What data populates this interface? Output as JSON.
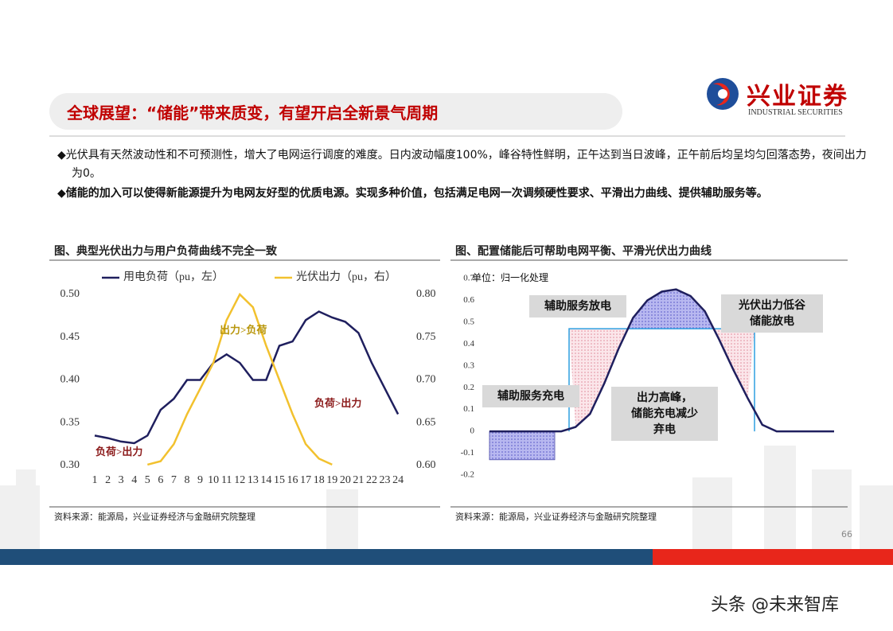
{
  "header": {
    "title": "全球展望：“储能”带来质变，有望开启全新景气周期",
    "logo_name": "兴业证券",
    "logo_sub": "INDUSTRIAL SECURITIES"
  },
  "bullets": [
    "◆光伏具有天然波动性和不可预测性，增大了电网运行调度的难度。日内波动幅度100%，峰谷特性鲜明，正午达到当日波峰，正午前后均呈均匀回落态势，夜间出力为0。",
    "◆储能的加入可以使得新能源提升为电网友好型的优质电源。实现多种价值，包括满足电网一次调频硬性要求、平滑出力曲线、提供辅助服务等。"
  ],
  "chart_data": [
    {
      "type": "line",
      "title": "图、典型光伏出力与用户负荷曲线不完全一致",
      "categories": [
        1,
        2,
        3,
        4,
        5,
        6,
        7,
        8,
        9,
        10,
        11,
        12,
        13,
        14,
        15,
        16,
        17,
        18,
        19,
        20,
        21,
        22,
        23,
        24
      ],
      "series": [
        {
          "name": "用电负荷（pu，左）",
          "color": "#1f1f5e",
          "axis": "y",
          "values": [
            0.335,
            0.332,
            0.328,
            0.326,
            0.335,
            0.365,
            0.378,
            0.4,
            0.4,
            0.42,
            0.43,
            0.42,
            0.4,
            0.4,
            0.44,
            0.445,
            0.47,
            0.48,
            0.473,
            0.468,
            0.455,
            0.42,
            0.39,
            0.36
          ]
        },
        {
          "name": "光伏出力（pu，右）",
          "color": "#f2c12e",
          "axis": "y2",
          "values": [
            null,
            null,
            null,
            null,
            0.601,
            0.605,
            0.625,
            0.66,
            0.69,
            0.72,
            0.77,
            0.8,
            0.785,
            0.74,
            0.7,
            0.66,
            0.625,
            0.608,
            0.601,
            null,
            null,
            null,
            null,
            null
          ]
        }
      ],
      "ylim": [
        0.3,
        0.5
      ],
      "yticks": [
        {
          "value": 0.3,
          "label": "0.30"
        },
        {
          "value": 0.35,
          "label": "0.35"
        },
        {
          "value": 0.4,
          "label": "0.40"
        },
        {
          "value": 0.45,
          "label": "0.45"
        },
        {
          "value": 0.5,
          "label": "0.50"
        }
      ],
      "y2lim": [
        0.6,
        0.8
      ],
      "y2ticks": [
        {
          "value": 0.6,
          "label": "0.60"
        },
        {
          "value": 0.65,
          "label": "0.65"
        },
        {
          "value": 0.7,
          "label": "0.70"
        },
        {
          "value": 0.75,
          "label": "0.75"
        },
        {
          "value": 0.8,
          "label": "0.80"
        }
      ],
      "annotations": [
        "出力>负荷",
        "负荷>出力",
        "负荷>出力"
      ],
      "source": "资料来源：能源局，兴业证券经济与金融研究院整理"
    },
    {
      "type": "line",
      "title": "图、配置储能后可帮助电网平衡、平滑光伏出力曲线",
      "subtitle": "单位：归一化处理",
      "categories": [
        null,
        null,
        null,
        null,
        null,
        null,
        null,
        null,
        null,
        null,
        null,
        null,
        null,
        null,
        null,
        null,
        null,
        null,
        null,
        null,
        null,
        null,
        null,
        null,
        null
      ],
      "series": [
        {
          "name": "光伏出力",
          "color": "#1f1f5e",
          "values": [
            0,
            0,
            0,
            0,
            0,
            0,
            0.02,
            0.08,
            0.22,
            0.38,
            0.52,
            0.6,
            0.64,
            0.65,
            0.62,
            0.55,
            0.42,
            0.28,
            0.15,
            0.03,
            0,
            0,
            0,
            0,
            0
          ]
        }
      ],
      "smoothed_level": 0.47,
      "charge_level": -0.13,
      "ylim": [
        -0.2,
        0.7
      ],
      "yticks": [
        -0.2,
        -0.1,
        0,
        0.1,
        0.2,
        0.3,
        0.4,
        0.5,
        0.6,
        0.7
      ],
      "annotations": [
        "辅助服务放电",
        "光伏出力低谷\n储能放电",
        "辅助服务充电",
        "出力高峰，\n储能充电减少\n弃电"
      ],
      "source": "资料来源：能源局，兴业证券经济与金融研究院整理"
    }
  ],
  "page_number": "66",
  "watermark": "头条 @未来智库"
}
